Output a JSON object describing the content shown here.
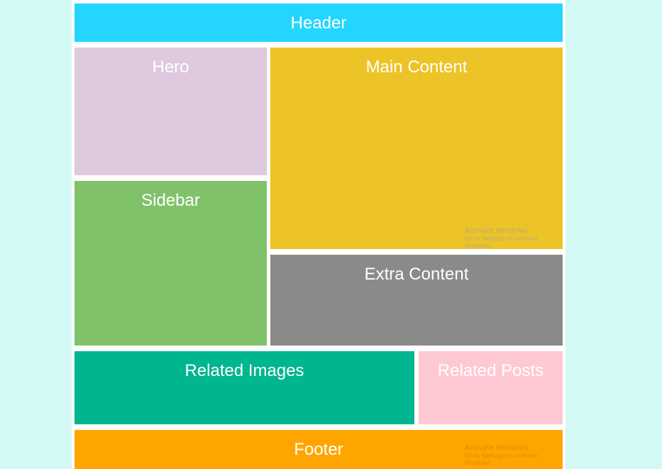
{
  "colors": {
    "page_background": "#d3f9f4",
    "container_background": "#ffffff",
    "header": "#24d6ff",
    "hero": "#dfc9de",
    "main_content": "#edc427",
    "sidebar": "#80c26a",
    "extra_content": "#8a8a88",
    "related_images": "#00b68f",
    "related_posts": "#ffc9d3",
    "footer": "#ffa500",
    "text": "#ffffff"
  },
  "areas": {
    "header": "Header",
    "hero": "Hero",
    "main_content": "Main Content",
    "sidebar": "Sidebar",
    "extra_content": "Extra Content",
    "related_images": "Related Images",
    "related_posts": "Related Posts",
    "footer": "Footer"
  },
  "watermark": {
    "title": "Activate Windows",
    "subtitle": "Go to Settings to activate Windows."
  }
}
